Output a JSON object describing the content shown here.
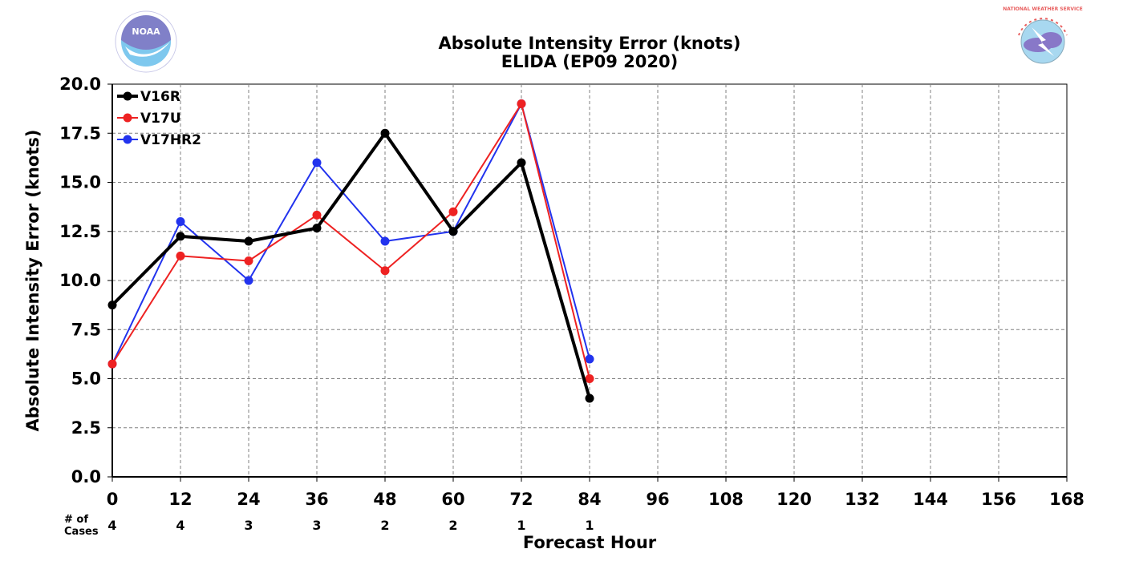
{
  "chart_data": {
    "type": "line",
    "title": "Absolute Intensity Error (knots)",
    "subtitle": "ELIDA (EP09 2020)",
    "xlabel": "Forecast Hour",
    "ylabel": "Absolute Intensity Error (knots)",
    "xlim": [
      0,
      168
    ],
    "ylim": [
      0,
      20
    ],
    "x_ticks": [
      "0",
      "12",
      "24",
      "36",
      "48",
      "60",
      "72",
      "84",
      "96",
      "108",
      "120",
      "132",
      "144",
      "156",
      "168"
    ],
    "y_ticks": [
      "0.0",
      "2.5",
      "5.0",
      "7.5",
      "10.0",
      "12.5",
      "15.0",
      "17.5",
      "20.0"
    ],
    "grid": true,
    "legend_position": "top-left",
    "x": [
      0,
      12,
      24,
      36,
      48,
      60,
      72,
      84
    ],
    "series": [
      {
        "name": "V16R",
        "color": "#000000",
        "values": [
          8.75,
          12.25,
          12.0,
          12.67,
          17.5,
          12.5,
          16.0,
          4.0
        ]
      },
      {
        "name": "V17U",
        "color": "#ee2222",
        "values": [
          5.75,
          11.25,
          11.0,
          13.33,
          10.5,
          13.5,
          19.0,
          5.0
        ]
      },
      {
        "name": "V17HR2",
        "color": "#2233ee",
        "values": [
          5.75,
          13.0,
          10.0,
          16.0,
          12.0,
          12.5,
          19.0,
          6.0
        ]
      }
    ],
    "cases_label": "# of\nCases",
    "cases": [
      "4",
      "4",
      "3",
      "3",
      "2",
      "2",
      "1",
      "1"
    ]
  },
  "logos": {
    "left": {
      "icon": "noaa-logo-icon",
      "text": "NOAA"
    },
    "right": {
      "icon": "nws-logo-icon",
      "text": "NATIONAL WEATHER SERVICE"
    }
  }
}
